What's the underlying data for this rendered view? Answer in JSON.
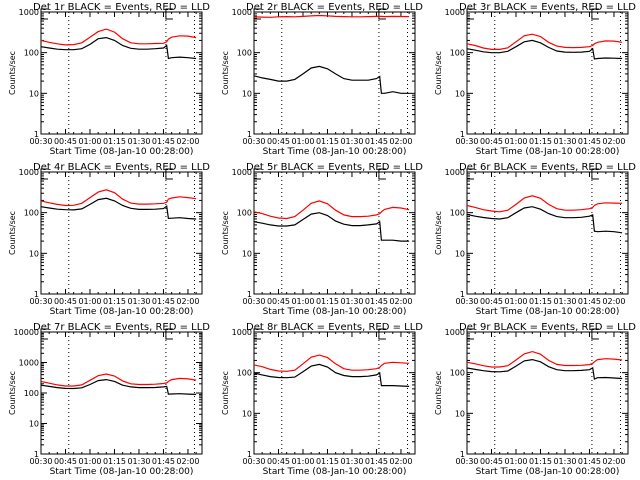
{
  "chart_data": [
    {
      "type": "line",
      "title": "Det 1r BLACK = Events, RED = LLD",
      "xlabel": "Start Time (08-Jan-10 00:28:00)",
      "ylabel": "Counts/sec",
      "yscale": "log",
      "ylim": [
        1,
        1000
      ],
      "yticks": [
        "1",
        "10",
        "100",
        "1000"
      ],
      "xtick_labels": [
        "00:30",
        "00:45",
        "01:00",
        "01:15",
        "01:30",
        "01:45",
        "02:00"
      ],
      "xlim_minutes": [
        0,
        98.6
      ],
      "vlines_minutes": [
        17,
        76.5,
        94
      ],
      "markers": [
        "E",
        "E"
      ],
      "x_minutes": [
        0,
        5,
        10,
        15,
        20,
        25,
        30,
        35,
        40,
        45,
        50,
        55,
        60,
        65,
        70,
        75,
        77,
        78,
        80,
        85,
        90,
        95
      ],
      "series": [
        {
          "name": "Events",
          "color": "#000000",
          "values": [
            140,
            130,
            122,
            118,
            118,
            125,
            160,
            220,
            235,
            200,
            150,
            128,
            122,
            122,
            125,
            130,
            150,
            72,
            75,
            78,
            75,
            72
          ]
        },
        {
          "name": "LLD",
          "color": "#ff0000",
          "values": [
            200,
            180,
            165,
            155,
            158,
            175,
            240,
            330,
            380,
            320,
            220,
            175,
            165,
            165,
            168,
            170,
            185,
            215,
            240,
            260,
            255,
            235
          ]
        }
      ]
    },
    {
      "type": "line",
      "title": "Det 2r BLACK = Events, RED = LLD",
      "xlabel": "Start Time (08-Jan-10 00:28:00)",
      "ylabel": "Counts/sec",
      "yscale": "log",
      "ylim": [
        1,
        1000
      ],
      "yticks": [
        "1",
        "10",
        "100",
        "1000"
      ],
      "xtick_labels": [
        "00:30",
        "00:45",
        "01:00",
        "01:15",
        "01:30",
        "01:45",
        "02:00"
      ],
      "xlim_minutes": [
        0,
        98.6
      ],
      "vlines_minutes": [
        17,
        76.5,
        94
      ],
      "markers": [
        "E",
        "E"
      ],
      "x_minutes": [
        0,
        5,
        10,
        15,
        20,
        25,
        30,
        35,
        40,
        45,
        50,
        55,
        60,
        65,
        70,
        75,
        77,
        78,
        80,
        85,
        90,
        95
      ],
      "series": [
        {
          "name": "Events",
          "color": "#000000",
          "values": [
            27,
            24,
            22,
            20,
            20,
            22,
            30,
            42,
            46,
            40,
            30,
            23,
            21,
            21,
            21,
            23,
            26,
            10,
            10,
            11,
            10,
            10
          ]
        },
        {
          "name": "LLD",
          "color": "#ff0000",
          "values": [
            760,
            750,
            740,
            760,
            770,
            760,
            780,
            800,
            820,
            800,
            780,
            770,
            760,
            760,
            770,
            780,
            780,
            780,
            770,
            780,
            775,
            770
          ]
        }
      ]
    },
    {
      "type": "line",
      "title": "Det 3r BLACK = Events, RED = LLD",
      "xlabel": "Start Time (08-Jan-10 00:28:00)",
      "ylabel": "Counts/sec",
      "yscale": "log",
      "ylim": [
        1,
        1000
      ],
      "yticks": [
        "1",
        "10",
        "100",
        "1000"
      ],
      "xtick_labels": [
        "00:30",
        "00:45",
        "01:00",
        "01:15",
        "01:30",
        "01:45",
        "02:00"
      ],
      "xlim_minutes": [
        0,
        98.6
      ],
      "vlines_minutes": [
        17,
        76.5,
        94
      ],
      "markers": [
        "E",
        "E"
      ],
      "x_minutes": [
        0,
        5,
        10,
        15,
        20,
        25,
        30,
        35,
        40,
        45,
        50,
        55,
        60,
        65,
        70,
        75,
        77,
        78,
        80,
        85,
        90,
        95
      ],
      "series": [
        {
          "name": "Events",
          "color": "#000000",
          "values": [
            125,
            115,
            105,
            100,
            100,
            108,
            140,
            185,
            200,
            175,
            135,
            110,
            103,
            102,
            103,
            108,
            125,
            70,
            72,
            74,
            73,
            72
          ]
        },
        {
          "name": "LLD",
          "color": "#ff0000",
          "values": [
            165,
            150,
            130,
            120,
            120,
            132,
            185,
            260,
            285,
            250,
            180,
            145,
            135,
            133,
            135,
            140,
            150,
            165,
            180,
            195,
            192,
            180
          ]
        }
      ]
    },
    {
      "type": "line",
      "title": "Det 4r BLACK = Events, RED = LLD",
      "xlabel": "Start Time (08-Jan-10 00:28:00)",
      "ylabel": "Counts/sec",
      "yscale": "log",
      "ylim": [
        1,
        1000
      ],
      "yticks": [
        "1",
        "10",
        "100",
        "1000"
      ],
      "xtick_labels": [
        "00:30",
        "00:45",
        "01:00",
        "01:15",
        "01:30",
        "01:45",
        "02:00"
      ],
      "xlim_minutes": [
        0,
        98.6
      ],
      "vlines_minutes": [
        17,
        76.5,
        94
      ],
      "markers": [
        "E",
        "E"
      ],
      "x_minutes": [
        0,
        5,
        10,
        15,
        20,
        25,
        30,
        35,
        40,
        45,
        50,
        55,
        60,
        65,
        70,
        75,
        77,
        78,
        80,
        85,
        90,
        95
      ],
      "series": [
        {
          "name": "Events",
          "color": "#000000",
          "values": [
            140,
            130,
            122,
            118,
            117,
            124,
            160,
            210,
            225,
            195,
            150,
            128,
            120,
            120,
            122,
            126,
            145,
            72,
            73,
            75,
            72,
            70
          ]
        },
        {
          "name": "LLD",
          "color": "#ff0000",
          "values": [
            195,
            175,
            160,
            150,
            152,
            170,
            235,
            320,
            365,
            310,
            215,
            172,
            162,
            162,
            165,
            170,
            180,
            215,
            230,
            245,
            235,
            220
          ]
        }
      ]
    },
    {
      "type": "line",
      "title": "Det 5r BLACK = Events, RED = LLD",
      "xlabel": "Start Time (08-Jan-10 00:28:00)",
      "ylabel": "Counts/sec",
      "yscale": "log",
      "ylim": [
        1,
        1000
      ],
      "yticks": [
        "1",
        "10",
        "100",
        "1000"
      ],
      "xtick_labels": [
        "00:30",
        "00:45",
        "01:00",
        "01:15",
        "01:30",
        "01:45",
        "02:00"
      ],
      "xlim_minutes": [
        0,
        98.6
      ],
      "vlines_minutes": [
        17,
        76.5,
        94
      ],
      "markers": [
        "E",
        "E"
      ],
      "x_minutes": [
        0,
        5,
        10,
        15,
        20,
        25,
        30,
        35,
        40,
        45,
        50,
        55,
        60,
        65,
        70,
        75,
        77,
        78,
        80,
        85,
        90,
        95
      ],
      "series": [
        {
          "name": "Events",
          "color": "#000000",
          "values": [
            60,
            55,
            50,
            47,
            47,
            50,
            68,
            92,
            100,
            85,
            62,
            52,
            48,
            48,
            50,
            53,
            60,
            21,
            21,
            21,
            20,
            20
          ]
        },
        {
          "name": "LLD",
          "color": "#ff0000",
          "values": [
            105,
            95,
            82,
            74,
            72,
            80,
            115,
            170,
            195,
            165,
            115,
            88,
            80,
            80,
            82,
            88,
            95,
            105,
            120,
            135,
            130,
            118
          ]
        }
      ]
    },
    {
      "type": "line",
      "title": "Det 6r BLACK = Events, RED = LLD",
      "xlabel": "Start Time (08-Jan-10 00:28:00)",
      "ylabel": "Counts/sec",
      "yscale": "log",
      "ylim": [
        1,
        1000
      ],
      "yticks": [
        "1",
        "10",
        "100",
        "1000"
      ],
      "xtick_labels": [
        "00:30",
        "00:45",
        "01:00",
        "01:15",
        "01:30",
        "01:45",
        "02:00"
      ],
      "xlim_minutes": [
        0,
        98.6
      ],
      "vlines_minutes": [
        17,
        76.5,
        94
      ],
      "markers": [
        "E",
        "E"
      ],
      "x_minutes": [
        0,
        5,
        10,
        15,
        20,
        25,
        30,
        35,
        40,
        45,
        50,
        55,
        60,
        65,
        70,
        75,
        77,
        78,
        80,
        85,
        90,
        95
      ],
      "series": [
        {
          "name": "Events",
          "color": "#000000",
          "values": [
            90,
            82,
            76,
            72,
            70,
            75,
            100,
            130,
            140,
            122,
            95,
            80,
            75,
            75,
            77,
            82,
            88,
            35,
            34,
            35,
            34,
            32
          ]
        },
        {
          "name": "LLD",
          "color": "#ff0000",
          "values": [
            150,
            135,
            118,
            110,
            105,
            115,
            160,
            230,
            260,
            225,
            160,
            125,
            115,
            115,
            118,
            125,
            135,
            150,
            165,
            175,
            172,
            170
          ]
        }
      ]
    },
    {
      "type": "line",
      "title": "Det 7r BLACK = Events, RED = LLD",
      "xlabel": "Start Time (08-Jan-10 00:28:00)",
      "ylabel": "Counts/sec",
      "yscale": "log",
      "ylim": [
        1,
        10000
      ],
      "yticks": [
        "1",
        "10",
        "100",
        "1000",
        "10000"
      ],
      "xtick_labels": [
        "00:30",
        "00:45",
        "01:00",
        "01:15",
        "01:30",
        "01:45",
        "02:00"
      ],
      "xlim_minutes": [
        0,
        98.6
      ],
      "vlines_minutes": [
        17,
        76.5,
        94
      ],
      "markers": [
        "E",
        "E"
      ],
      "x_minutes": [
        0,
        5,
        10,
        15,
        20,
        25,
        30,
        35,
        40,
        45,
        50,
        55,
        60,
        65,
        70,
        75,
        77,
        78,
        80,
        85,
        90,
        95
      ],
      "series": [
        {
          "name": "Events",
          "color": "#000000",
          "values": [
            180,
            165,
            150,
            142,
            140,
            148,
            190,
            255,
            275,
            240,
            180,
            158,
            150,
            150,
            152,
            158,
            165,
            92,
            93,
            95,
            92,
            90
          ]
        },
        {
          "name": "LLD",
          "color": "#ff0000",
          "values": [
            240,
            210,
            185,
            170,
            170,
            185,
            260,
            370,
            420,
            360,
            250,
            200,
            190,
            190,
            195,
            205,
            215,
            240,
            275,
            300,
            290,
            265
          ]
        }
      ]
    },
    {
      "type": "line",
      "title": "Det 8r BLACK = Events, RED = LLD",
      "xlabel": "Start Time (08-Jan-10 00:28:00)",
      "ylabel": "Counts/sec",
      "yscale": "log",
      "ylim": [
        1,
        1000
      ],
      "yticks": [
        "1",
        "10",
        "100",
        "1000"
      ],
      "xtick_labels": [
        "00:30",
        "00:45",
        "01:00",
        "01:15",
        "01:30",
        "01:45",
        "02:00"
      ],
      "xlim_minutes": [
        0,
        98.6
      ],
      "vlines_minutes": [
        17,
        76.5,
        94
      ],
      "markers": [
        "E",
        "E"
      ],
      "x_minutes": [
        0,
        5,
        10,
        15,
        20,
        25,
        30,
        35,
        40,
        45,
        50,
        55,
        60,
        65,
        70,
        75,
        77,
        78,
        80,
        85,
        90,
        95
      ],
      "series": [
        {
          "name": "Events",
          "color": "#000000",
          "values": [
            98,
            88,
            80,
            76,
            75,
            78,
            105,
            145,
            160,
            138,
            100,
            85,
            80,
            80,
            82,
            88,
            98,
            48,
            48,
            48,
            47,
            46
          ]
        },
        {
          "name": "LLD",
          "color": "#ff0000",
          "values": [
            155,
            140,
            120,
            110,
            108,
            115,
            165,
            240,
            270,
            235,
            165,
            125,
            115,
            115,
            118,
            125,
            135,
            150,
            170,
            180,
            175,
            170
          ]
        }
      ]
    },
    {
      "type": "line",
      "title": "Det 9r BLACK = Events, RED = LLD",
      "xlabel": "Start Time (08-Jan-10 00:28:00)",
      "ylabel": "Counts/sec",
      "yscale": "log",
      "ylim": [
        1,
        1000
      ],
      "yticks": [
        "1",
        "10",
        "100",
        "1000"
      ],
      "xtick_labels": [
        "00:30",
        "00:45",
        "01:00",
        "01:15",
        "01:30",
        "01:45",
        "02:00"
      ],
      "xlim_minutes": [
        0,
        98.6
      ],
      "vlines_minutes": [
        17,
        76.5,
        94
      ],
      "markers": [
        "E",
        "E"
      ],
      "x_minutes": [
        0,
        5,
        10,
        15,
        20,
        25,
        30,
        35,
        40,
        45,
        50,
        55,
        60,
        65,
        70,
        75,
        77,
        78,
        80,
        85,
        90,
        95
      ],
      "series": [
        {
          "name": "Events",
          "color": "#000000",
          "values": [
            130,
            120,
            112,
            106,
            105,
            110,
            145,
            195,
            210,
            185,
            140,
            118,
            112,
            112,
            114,
            118,
            132,
            70,
            75,
            76,
            74,
            72
          ]
        },
        {
          "name": "LLD",
          "color": "#ff0000",
          "values": [
            180,
            165,
            148,
            138,
            138,
            148,
            205,
            290,
            330,
            285,
            200,
            160,
            150,
            150,
            152,
            158,
            170,
            185,
            210,
            220,
            215,
            205
          ]
        }
      ]
    }
  ]
}
